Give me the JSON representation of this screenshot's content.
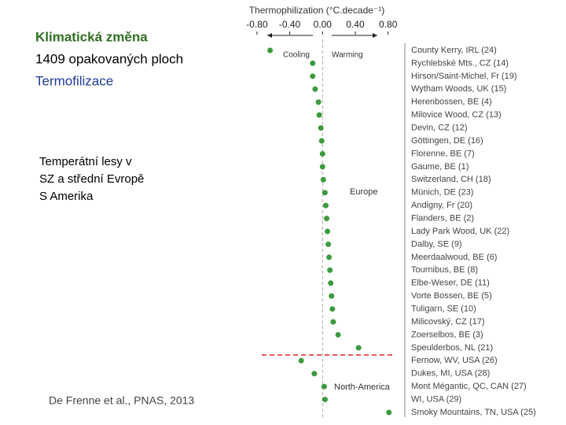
{
  "slide": {
    "heading": "Klimatická změna",
    "line2": "1409 opakovaných ploch",
    "line3": "Termofilizace",
    "body": [
      "Temperátní lesy v",
      "SZ a střední Evropě",
      "S Amerika"
    ],
    "citation": "De Frenne et al., PNAS, 2013"
  },
  "chart_data": {
    "type": "dot",
    "x_label": "Thermophilization (°C.decade⁻¹)",
    "annotations": {
      "cooling": "Cooling",
      "warming": "Warming",
      "europe": "Europe",
      "north_america": "North-America"
    },
    "categories": [
      "County Kerry, IRL (24)",
      "Rychlebské Mts., CZ (14)",
      "Hirson/Saint-Michel, Fr (19)",
      "Wytham Woods, UK (15)",
      "Herenbossen, BE (4)",
      "Milovice Wood, CZ (13)",
      "Devin, CZ (12)",
      "Göttingen, DE (16)",
      "Florenne, BE (7)",
      "Gaume, BE (1)",
      "Switzerland, CH (18)",
      "Münich, DE (23)",
      "Andigny, Fr (20)",
      "Flanders, BE (2)",
      "Lady Park Wood, UK (22)",
      "Dalby, SE (9)",
      "Meerdaalwoud, BE (6)",
      "Tournibus, BE (8)",
      "Elbe-Weser, DE (11)",
      "Vorte Bossen, BE (5)",
      "Tuligarn, SE (10)",
      "Milicovský, CZ (17)",
      "Zoerselbos, BE (3)",
      "Speulderbos, NL (21)",
      "Fernow, WV, USA (26)",
      "Dukes, MI, USA (28)",
      "Mont Mégantic, QC, CAN (27)",
      "WI, USA (29)",
      "Smoky Mountains, TN, USA (25)"
    ],
    "values": [
      -0.64,
      -0.12,
      -0.12,
      -0.09,
      -0.05,
      -0.04,
      -0.02,
      -0.01,
      0.0,
      0.0,
      0.01,
      0.03,
      0.04,
      0.05,
      0.06,
      0.07,
      0.08,
      0.09,
      0.1,
      0.11,
      0.12,
      0.13,
      0.19,
      0.44,
      -0.26,
      -0.1,
      0.02,
      0.03,
      0.81
    ],
    "color": "#3c9a3c",
    "xlim": [
      -1.0,
      0.87
    ],
    "xticks": [
      {
        "value": -0.8,
        "label": "-0.80"
      },
      {
        "value": -0.4,
        "label": "-0.40"
      },
      {
        "value": 0,
        "label": "0.00"
      },
      {
        "value": 0.4,
        "label": "0.40"
      },
      {
        "value": 0.8,
        "label": "0.80"
      }
    ]
  }
}
